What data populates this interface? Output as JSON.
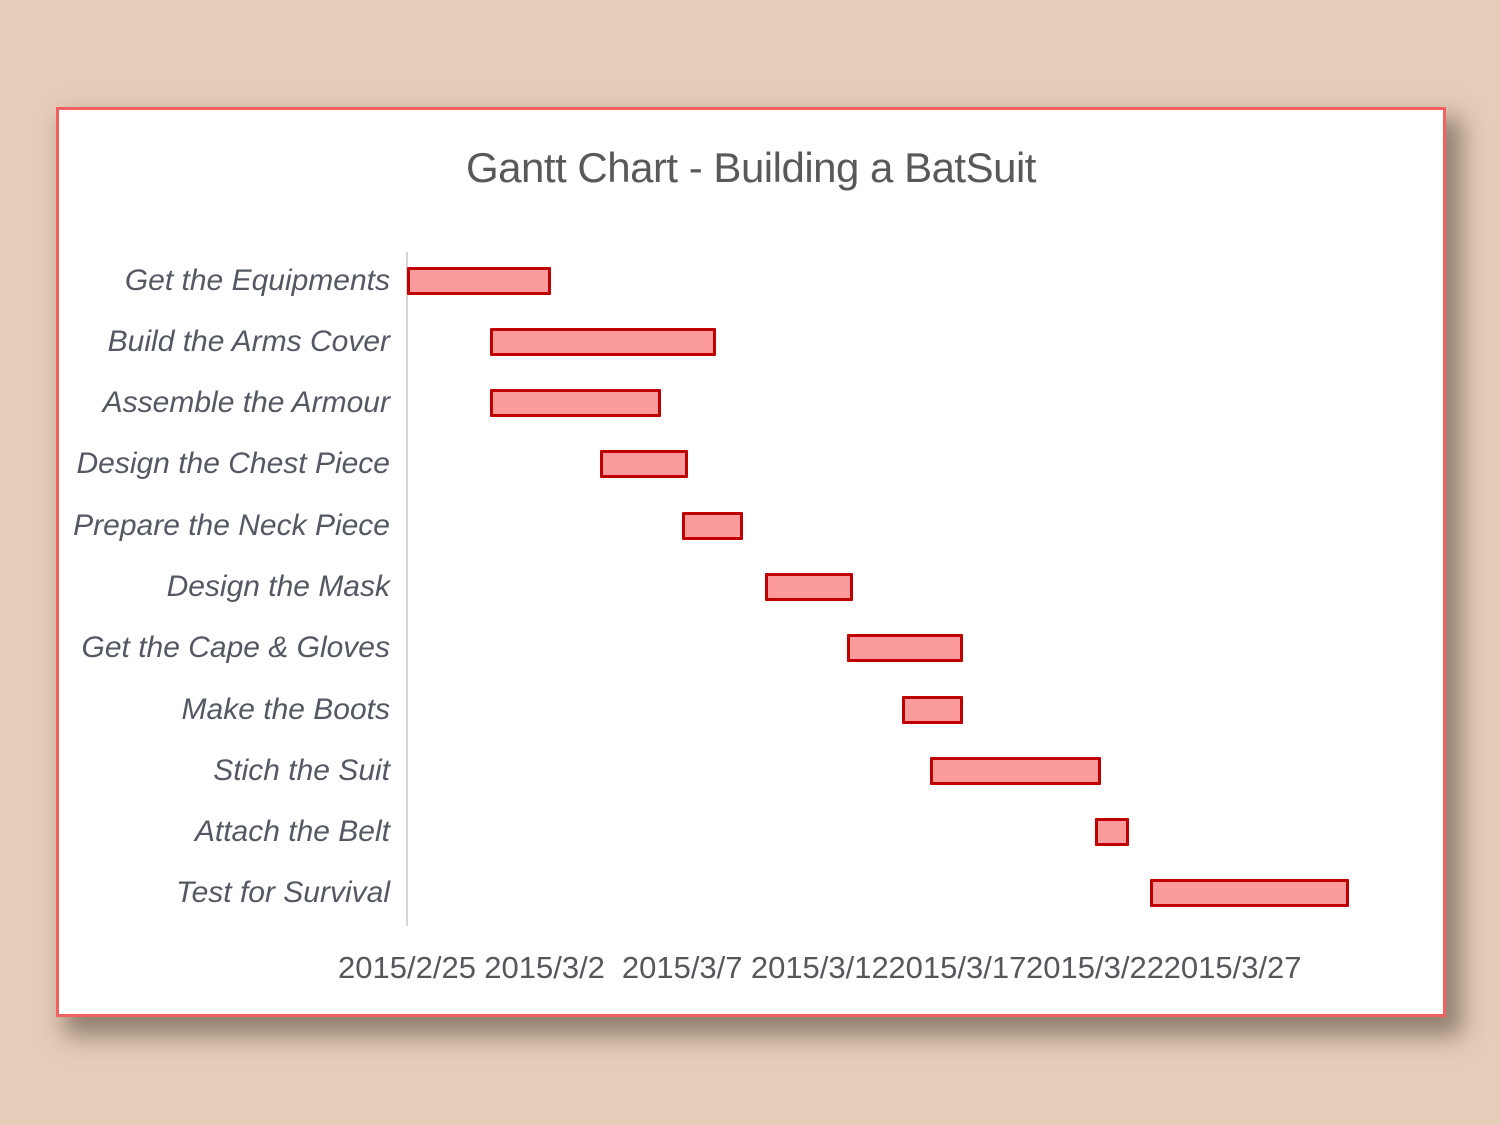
{
  "colors": {
    "page_background": "#e6cdb9",
    "frame_background": "#ffffff",
    "frame_border": "#f26060",
    "bar_fill": "#fb9b9b",
    "bar_border": "#c00000",
    "axis_line": "#d6d6d6",
    "title_text": "#595959",
    "category_text": "#535862",
    "tick_text": "#56575c"
  },
  "chart_data": {
    "type": "bar",
    "subtype": "gantt-horizontal",
    "title": "Gantt Chart - Building a BatSuit",
    "legend": "none",
    "grid": "off",
    "axis_start_date": "2015/2/25",
    "x_axis_range_days": [
      0,
      35
    ],
    "x_ticks": [
      {
        "label": "2015/2/25",
        "day": 0
      },
      {
        "label": "2015/3/2",
        "day": 5
      },
      {
        "label": "2015/3/7",
        "day": 10
      },
      {
        "label": "2015/3/12",
        "day": 15
      },
      {
        "label": "2015/3/17",
        "day": 20
      },
      {
        "label": "2015/3/22",
        "day": 25
      },
      {
        "label": "2015/3/27",
        "day": 30
      }
    ],
    "tasks": [
      {
        "label": "Get the Equipments",
        "start_date": "2015/2/25",
        "end_date": "2015/3/2",
        "start_offset_days": 0,
        "duration_days": 5
      },
      {
        "label": "Build the Arms Cover",
        "start_date": "2015/2/28",
        "end_date": "2015/3/8",
        "start_offset_days": 3,
        "duration_days": 8
      },
      {
        "label": "Assemble the Armour",
        "start_date": "2015/2/28",
        "end_date": "2015/3/6",
        "start_offset_days": 3,
        "duration_days": 6
      },
      {
        "label": "Design the Chest Piece",
        "start_date": "2015/3/4",
        "end_date": "2015/3/7",
        "start_offset_days": 7,
        "duration_days": 3
      },
      {
        "label": "Prepare the Neck Piece",
        "start_date": "2015/3/7",
        "end_date": "2015/3/9",
        "start_offset_days": 10,
        "duration_days": 2
      },
      {
        "label": "Design the Mask",
        "start_date": "2015/3/10",
        "end_date": "2015/3/13",
        "start_offset_days": 13,
        "duration_days": 3
      },
      {
        "label": "Get the Cape & Gloves",
        "start_date": "2015/3/13",
        "end_date": "2015/3/17",
        "start_offset_days": 16,
        "duration_days": 4
      },
      {
        "label": "Make the Boots",
        "start_date": "2015/3/15",
        "end_date": "2015/3/17",
        "start_offset_days": 18,
        "duration_days": 2
      },
      {
        "label": "Stich the Suit",
        "start_date": "2015/3/16",
        "end_date": "2015/3/22",
        "start_offset_days": 19,
        "duration_days": 6
      },
      {
        "label": "Attach the Belt",
        "start_date": "2015/3/22",
        "end_date": "2015/3/23",
        "start_offset_days": 25,
        "duration_days": 1
      },
      {
        "label": "Test for Survival",
        "start_date": "2015/3/24",
        "end_date": "2015/3/31",
        "start_offset_days": 27,
        "duration_days": 7
      }
    ]
  }
}
